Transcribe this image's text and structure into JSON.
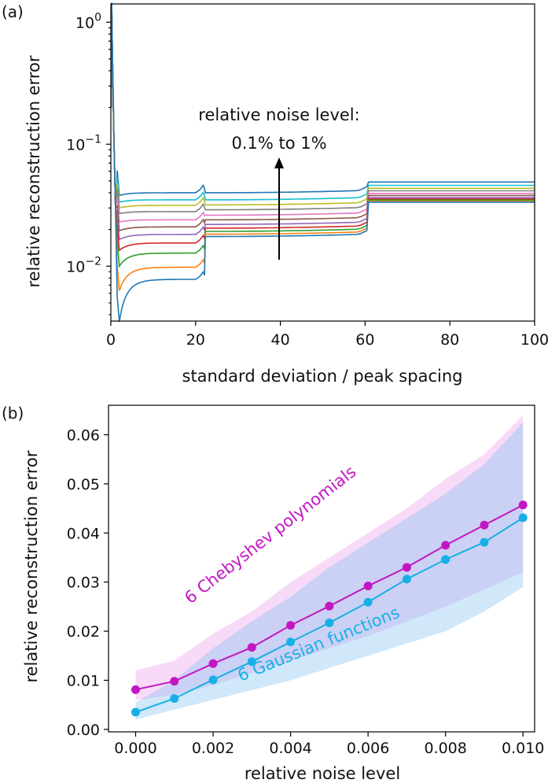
{
  "chart_data": [
    {
      "panel": "(a)",
      "type": "line",
      "xlabel": "standard deviation / peak spacing",
      "ylabel": "relative reconstruction error",
      "xlim": [
        0,
        100
      ],
      "ylim_log10": [
        -2.45,
        0.15
      ],
      "yscale": "log",
      "x_ticks": [
        0,
        20,
        40,
        60,
        80,
        100
      ],
      "y_ticks": [
        {
          "label": "10^0",
          "base": "10",
          "exp": "0",
          "value": 1
        },
        {
          "label": "10^-1",
          "base": "10",
          "exp": "−1",
          "value": 0.1
        },
        {
          "label": "10^-2",
          "base": "10",
          "exp": "−2",
          "value": 0.01
        }
      ],
      "annotation_line1": "relative noise level:",
      "annotation_line2": "0.1% to 1%",
      "series": [
        {
          "name": "noise 0.1%",
          "color": "#1f77b4",
          "values": {
            "min": 0.0035,
            "plateau1": 0.0078,
            "plateau2": 0.0175,
            "plateau3": 0.0335
          }
        },
        {
          "name": "noise 0.2%",
          "color": "#ff7f0e",
          "values": {
            "min": 0.0063,
            "plateau1": 0.0098,
            "plateau2": 0.0183,
            "plateau3": 0.034
          }
        },
        {
          "name": "noise 0.3%",
          "color": "#2ca02c",
          "values": {
            "min": 0.01,
            "plateau1": 0.0128,
            "plateau2": 0.0193,
            "plateau3": 0.0348
          }
        },
        {
          "name": "noise 0.4%",
          "color": "#d62728",
          "values": {
            "min": 0.0135,
            "plateau1": 0.0155,
            "plateau2": 0.0205,
            "plateau3": 0.0356
          }
        },
        {
          "name": "noise 0.5%",
          "color": "#9467bd",
          "values": {
            "min": 0.0165,
            "plateau1": 0.0182,
            "plateau2": 0.022,
            "plateau3": 0.0365
          }
        },
        {
          "name": "noise 0.6%",
          "color": "#8c564b",
          "values": {
            "min": 0.0195,
            "plateau1": 0.021,
            "plateau2": 0.024,
            "plateau3": 0.038
          }
        },
        {
          "name": "noise 0.7%",
          "color": "#e377c2",
          "values": {
            "min": 0.023,
            "plateau1": 0.024,
            "plateau2": 0.0262,
            "plateau3": 0.0395
          }
        },
        {
          "name": "noise 0.8%",
          "color": "#7f7f7f",
          "values": {
            "min": 0.027,
            "plateau1": 0.028,
            "plateau2": 0.029,
            "plateau3": 0.0415
          }
        },
        {
          "name": "noise 0.9%",
          "color": "#bcbd22",
          "values": {
            "min": 0.03,
            "plateau1": 0.0315,
            "plateau2": 0.0318,
            "plateau3": 0.0435
          }
        },
        {
          "name": "noise 1.0%",
          "color": "#17becf",
          "values": {
            "min": 0.0335,
            "plateau1": 0.035,
            "plateau2": 0.035,
            "plateau3": 0.046
          }
        },
        {
          "name": "noise 1.1%",
          "color": "#1f77b4",
          "values": {
            "min": 0.038,
            "plateau1": 0.04,
            "plateau2": 0.04,
            "plateau3": 0.049
          }
        }
      ]
    },
    {
      "panel": "(b)",
      "type": "line",
      "xlabel": "relative noise level",
      "ylabel": "relative reconstruction error",
      "xlim": [
        -0.0007,
        0.0103
      ],
      "ylim": [
        -0.0005,
        0.066
      ],
      "x_ticks": [
        "0.000",
        "0.002",
        "0.004",
        "0.006",
        "0.008",
        "0.010"
      ],
      "x_tick_values": [
        0,
        0.002,
        0.004,
        0.006,
        0.008,
        0.01
      ],
      "y_ticks": [
        "0.00",
        "0.01",
        "0.02",
        "0.03",
        "0.04",
        "0.05",
        "0.06"
      ],
      "y_tick_values": [
        0,
        0.01,
        0.02,
        0.03,
        0.04,
        0.05,
        0.06
      ],
      "x": [
        0,
        0.001,
        0.002,
        0.003,
        0.004,
        0.005,
        0.006,
        0.007,
        0.008,
        0.009,
        0.01
      ],
      "series": [
        {
          "name": "6 Chebyshev polynomials",
          "color": "#c316c3",
          "values": [
            0.0081,
            0.0098,
            0.0134,
            0.0167,
            0.0212,
            0.0251,
            0.0292,
            0.033,
            0.0375,
            0.0416,
            0.0457
          ],
          "band_upper": [
            0.012,
            0.014,
            0.0195,
            0.024,
            0.03,
            0.035,
            0.04,
            0.045,
            0.051,
            0.056,
            0.064
          ],
          "band_lower": [
            0.006,
            0.007,
            0.009,
            0.0115,
            0.014,
            0.0165,
            0.019,
            0.022,
            0.025,
            0.0285,
            0.032
          ]
        },
        {
          "name": "6 Gaussian functions",
          "color": "#17b0e6",
          "values": [
            0.0035,
            0.0063,
            0.0101,
            0.0138,
            0.0178,
            0.0217,
            0.0259,
            0.0306,
            0.0346,
            0.0381,
            0.0431
          ],
          "band_upper": [
            0.0055,
            0.01,
            0.0165,
            0.022,
            0.027,
            0.033,
            0.038,
            0.043,
            0.048,
            0.054,
            0.0625
          ],
          "band_lower": [
            0.002,
            0.004,
            0.006,
            0.008,
            0.01,
            0.0125,
            0.015,
            0.0175,
            0.02,
            0.024,
            0.029
          ]
        }
      ]
    }
  ]
}
